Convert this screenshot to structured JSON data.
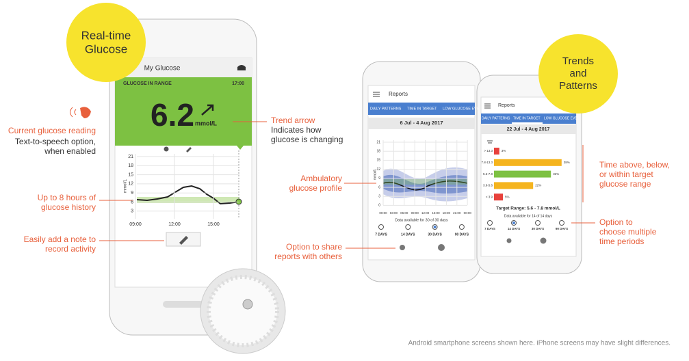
{
  "badges": {
    "realtime": [
      "Real-time",
      "Glucose"
    ],
    "trends": [
      "Trends",
      "and",
      "Patterns"
    ]
  },
  "phone1": {
    "title": "My Glucose",
    "banner": "GLUCOSE IN RANGE",
    "time": "17:00",
    "reading": "6.2",
    "unit": "mmol/L",
    "y_axis_label": "mmol/L",
    "yticks": [
      "21",
      "18",
      "15",
      "12",
      "9",
      "6",
      "3"
    ],
    "xticks": [
      "09:00",
      "12:00",
      "15:00"
    ]
  },
  "phone2": {
    "title": "Reports",
    "tabs": [
      "DAILY PATTERNS",
      "TIME IN TARGET",
      "LOW GLUCOSE EVE"
    ],
    "dates": "6 Jul - 4 Aug 2017",
    "y_axis_label": "mmol/L",
    "yticks": [
      "21",
      "18",
      "15",
      "12",
      "9",
      "6",
      "3",
      "0"
    ],
    "xticks": [
      "00:00",
      "03:00",
      "06:00",
      "09:00",
      "12:00",
      "15:00",
      "18:00",
      "21:00",
      "00:00"
    ],
    "note": "Data available for 30 of 30 days",
    "options": [
      "7 DAYS",
      "14 DAYS",
      "30 DAYS",
      "90 DAYS"
    ]
  },
  "phone3": {
    "title": "Reports",
    "tabs": [
      "DAILY PATTERNS",
      "TIME IN TARGET",
      "LOW GLUCOSE EVE"
    ],
    "dates": "22 Jul - 4 Aug 2017",
    "bars": {
      "labels": [
        "> 13.3",
        "7.8-13.3",
        "5.6-7.8",
        "3.9-5.6",
        "< 3.9"
      ],
      "values": [
        3,
        38,
        32,
        22,
        5
      ],
      "value_labels": [
        "3%",
        "38%",
        "32%",
        "22%",
        "5%"
      ],
      "colors": [
        "#e8413c",
        "#f5b41e",
        "#7dc142",
        "#f5b41e",
        "#e8413c"
      ]
    },
    "target": "Target Range: 5.6 - 7.8 mmol/L",
    "note": "Data available for 14 of 14 days",
    "options": [
      "7 DAYS",
      "14 DAYS",
      "30 DAYS",
      "90 DAYS"
    ]
  },
  "callouts": {
    "current": "Current glucose reading",
    "speech": [
      "Text-to-speech option,",
      "when enabled"
    ],
    "history": [
      "Up to 8 hours of",
      "glucose history"
    ],
    "note": [
      "Easily add a note to",
      "record activity"
    ],
    "trend": "Trend arrow",
    "trend_desc": [
      "Indicates how",
      "glucose is changing"
    ],
    "agp": [
      "Ambulatory",
      "glucose profile"
    ],
    "share": [
      "Option to share",
      "reports with others"
    ],
    "time_in_range": [
      "Time above, below,",
      "or within target",
      "glucose range"
    ],
    "periods": [
      "Option to",
      "choose multiple",
      "time periods"
    ]
  },
  "footer": "Android smartphone screens shown here. iPhone screens may have slight differences."
}
